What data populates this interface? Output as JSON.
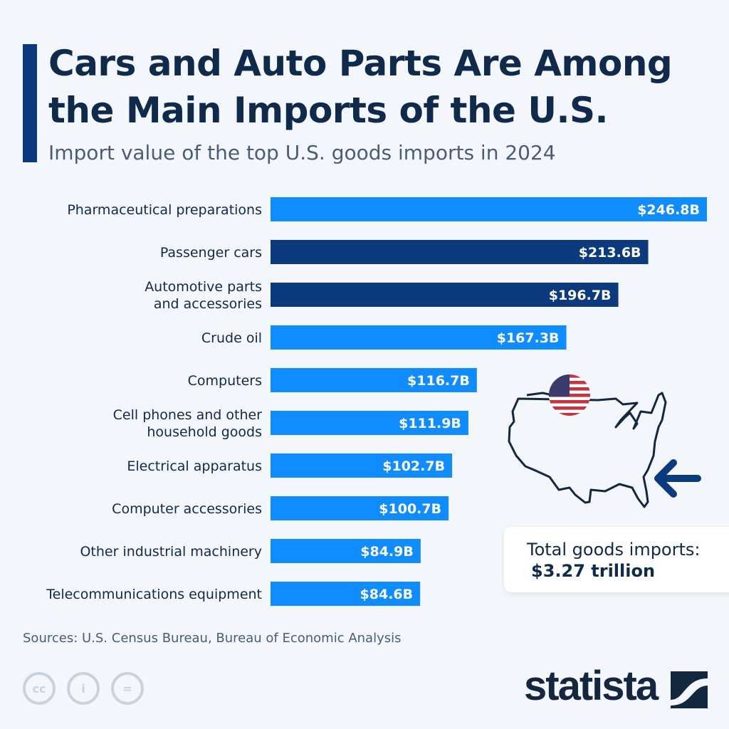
{
  "title_line1": "Cars and Auto Parts Are Among",
  "title_line2": "the Main Imports of the U.S.",
  "subtitle": "Import value of the top U.S. goods imports in 2024",
  "source": "Sources: U.S. Census Bureau, Bureau of Economic Analysis",
  "total": {
    "label": "Total goods imports:",
    "value": "$3.27 trillion"
  },
  "logo": "statista",
  "icons": [
    "cc-icon",
    "attribution-icon",
    "no-derivatives-icon",
    "us-flag-icon",
    "us-map-icon",
    "arrow-left-icon"
  ],
  "colors": {
    "highlight": "#0b3b7e",
    "default": "#0f8cff",
    "title": "#0f2a4a"
  },
  "chart_data": {
    "type": "bar",
    "orientation": "horizontal",
    "categories": [
      [
        "Pharmaceutical preparations"
      ],
      [
        "Passenger cars"
      ],
      [
        "Automotive parts",
        "and accessories"
      ],
      [
        "Crude oil"
      ],
      [
        "Computers"
      ],
      [
        "Cell phones and other",
        "household goods"
      ],
      [
        "Electrical apparatus"
      ],
      [
        "Computer accessories"
      ],
      [
        "Other industrial machinery"
      ],
      [
        "Telecommunications equipment"
      ]
    ],
    "values": [
      246.8,
      213.6,
      196.7,
      167.3,
      116.7,
      111.9,
      102.7,
      100.7,
      84.9,
      84.6
    ],
    "value_labels": [
      "$246.8B",
      "$213.6B",
      "$196.7B",
      "$167.3B",
      "$116.7B",
      "$111.9B",
      "$102.7B",
      "$100.7B",
      "$84.9B",
      "$84.6B"
    ],
    "highlighted": [
      false,
      true,
      true,
      false,
      false,
      false,
      false,
      false,
      false,
      false
    ],
    "unit": "billion U.S. dollars",
    "grid": false
  }
}
